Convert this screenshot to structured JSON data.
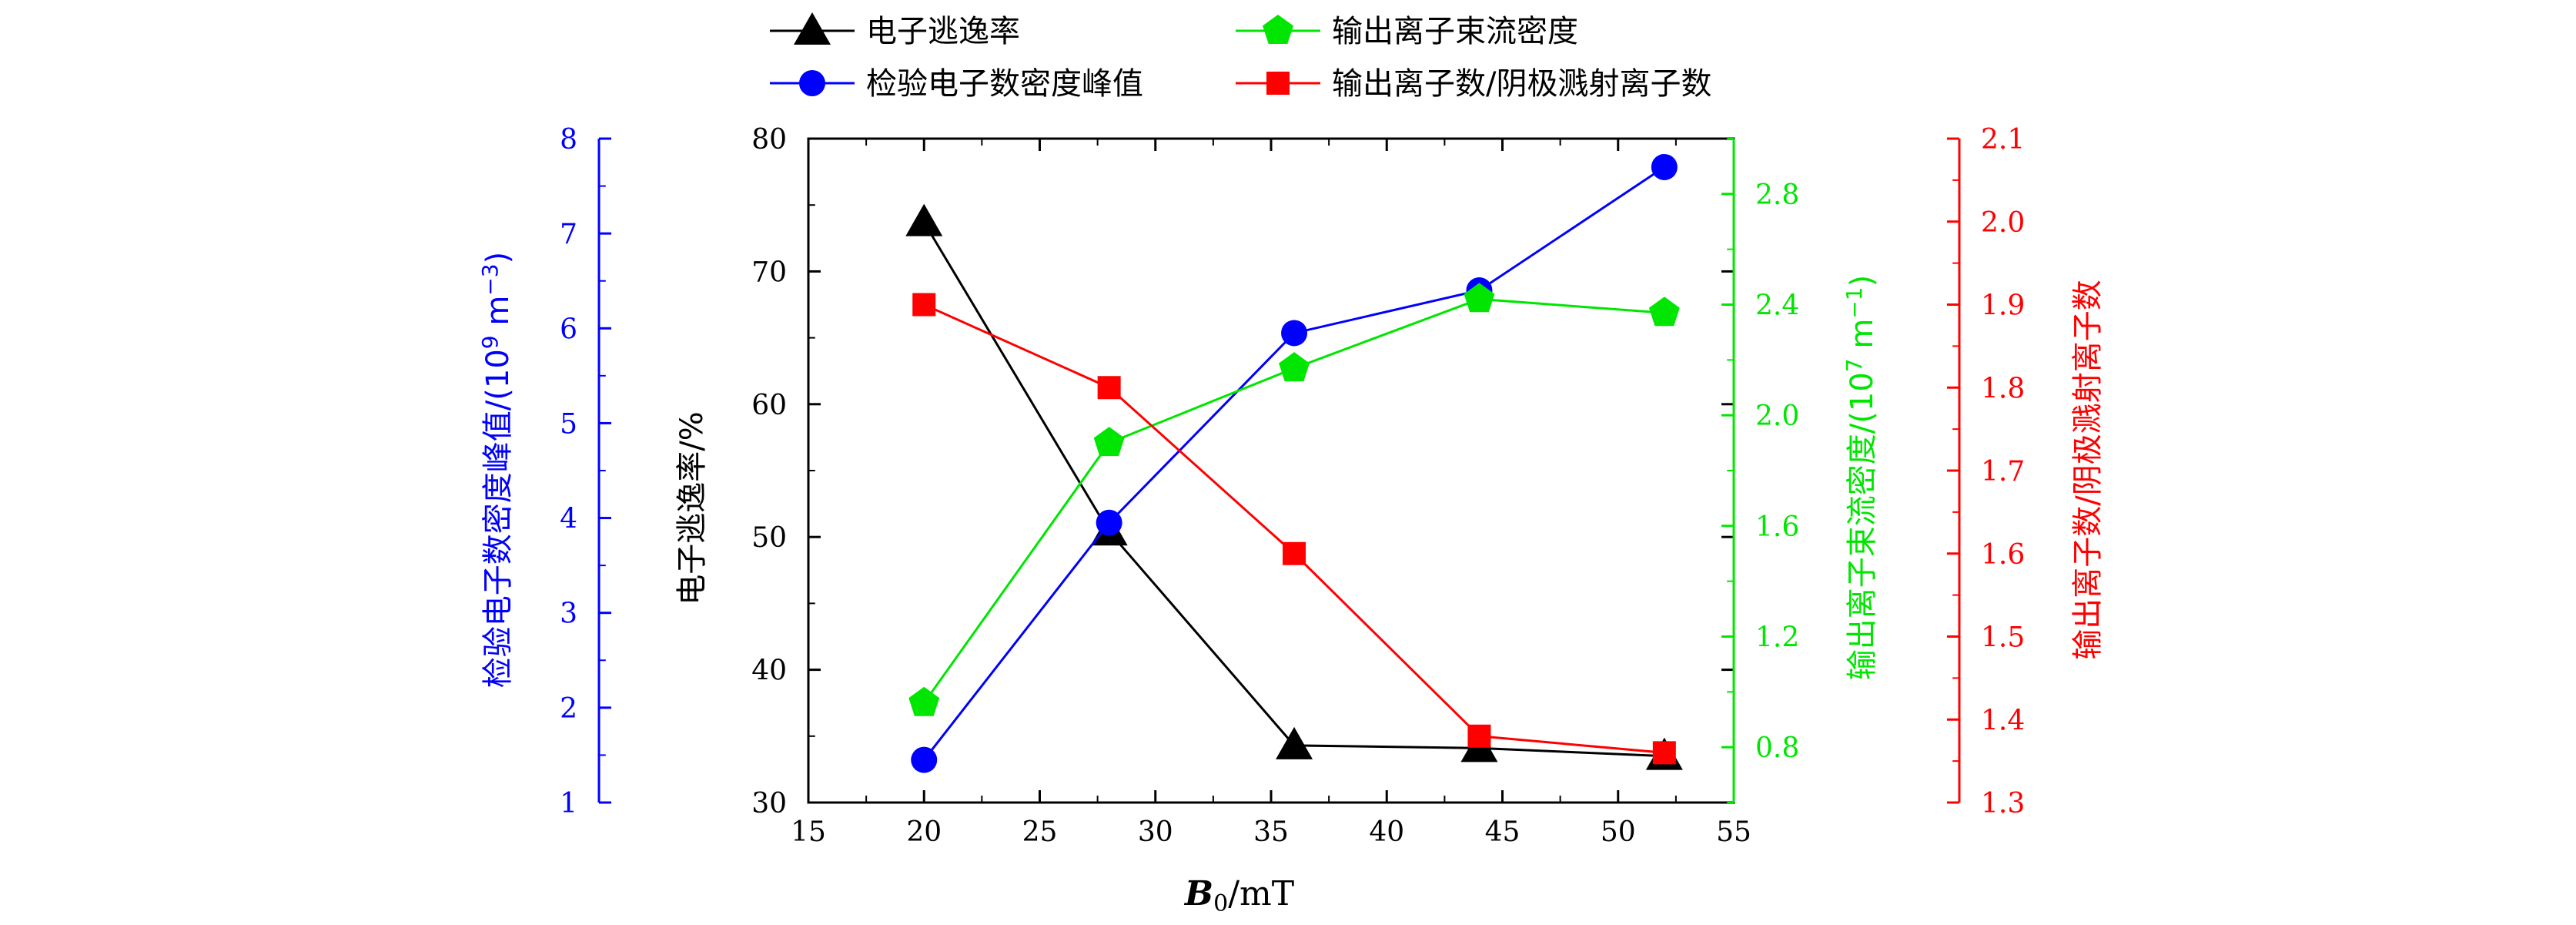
{
  "chart_data": {
    "type": "line",
    "x": [
      20,
      28,
      36,
      44,
      52
    ],
    "xlim": [
      15,
      55
    ],
    "x_ticks": [
      "15",
      "20",
      "25",
      "30",
      "35",
      "40",
      "45",
      "50",
      "55"
    ],
    "xlabel": {
      "main": "B",
      "sub": "0",
      "unit": "/mT"
    },
    "axes": {
      "left_black": {
        "label": "电子逃逸率/%",
        "ylim": [
          30,
          80
        ],
        "ticks": [
          "30",
          "40",
          "50",
          "60",
          "70",
          "80"
        ],
        "color": "#000000"
      },
      "left_blue": {
        "label_main": "检验电子数密度峰值/(10",
        "label_sup": "9",
        "label_rest": " m",
        "label_sup2": "−3",
        "label_end": ")",
        "ylim": [
          1,
          8
        ],
        "ticks": [
          "1",
          "2",
          "3",
          "4",
          "5",
          "6",
          "7",
          "8"
        ],
        "color": "#0000ff"
      },
      "right_green": {
        "label_main": "输出离子束流密度/(10",
        "label_sup": "7",
        "label_rest": " m",
        "label_sup2": "−1",
        "label_end": ")",
        "ylim": [
          0.6,
          3.0
        ],
        "ticks": [
          "0.8",
          "1.2",
          "1.6",
          "2.0",
          "2.4",
          "2.8"
        ],
        "color": "#00e600"
      },
      "right_red": {
        "label": "输出离子数/阴极溅射离子数",
        "ylim": [
          1.3,
          2.1
        ],
        "ticks": [
          "1.3",
          "1.4",
          "1.5",
          "1.6",
          "1.7",
          "1.8",
          "1.9",
          "2.0",
          "2.1"
        ],
        "color": "#ff0000"
      }
    },
    "series": [
      {
        "name": "电子逃逸率",
        "axis": "left_black",
        "marker": "triangle",
        "color": "#000000",
        "values": [
          73.7,
          50.4,
          34.3,
          34.1,
          33.5
        ]
      },
      {
        "name": "检验电子数密度峰值",
        "axis": "left_blue",
        "marker": "circle",
        "color": "#0000ff",
        "values": [
          1.45,
          3.95,
          5.95,
          6.4,
          7.7
        ]
      },
      {
        "name": "输出离子束流密度",
        "axis": "right_green",
        "marker": "pentagon",
        "color": "#00e600",
        "values": [
          0.96,
          1.9,
          2.17,
          2.42,
          2.37
        ]
      },
      {
        "name": "输出离子数/阴极溅射离子数",
        "axis": "right_red",
        "marker": "square",
        "color": "#ff0000",
        "values": [
          1.9,
          1.8,
          1.6,
          1.38,
          1.36
        ]
      }
    ]
  }
}
